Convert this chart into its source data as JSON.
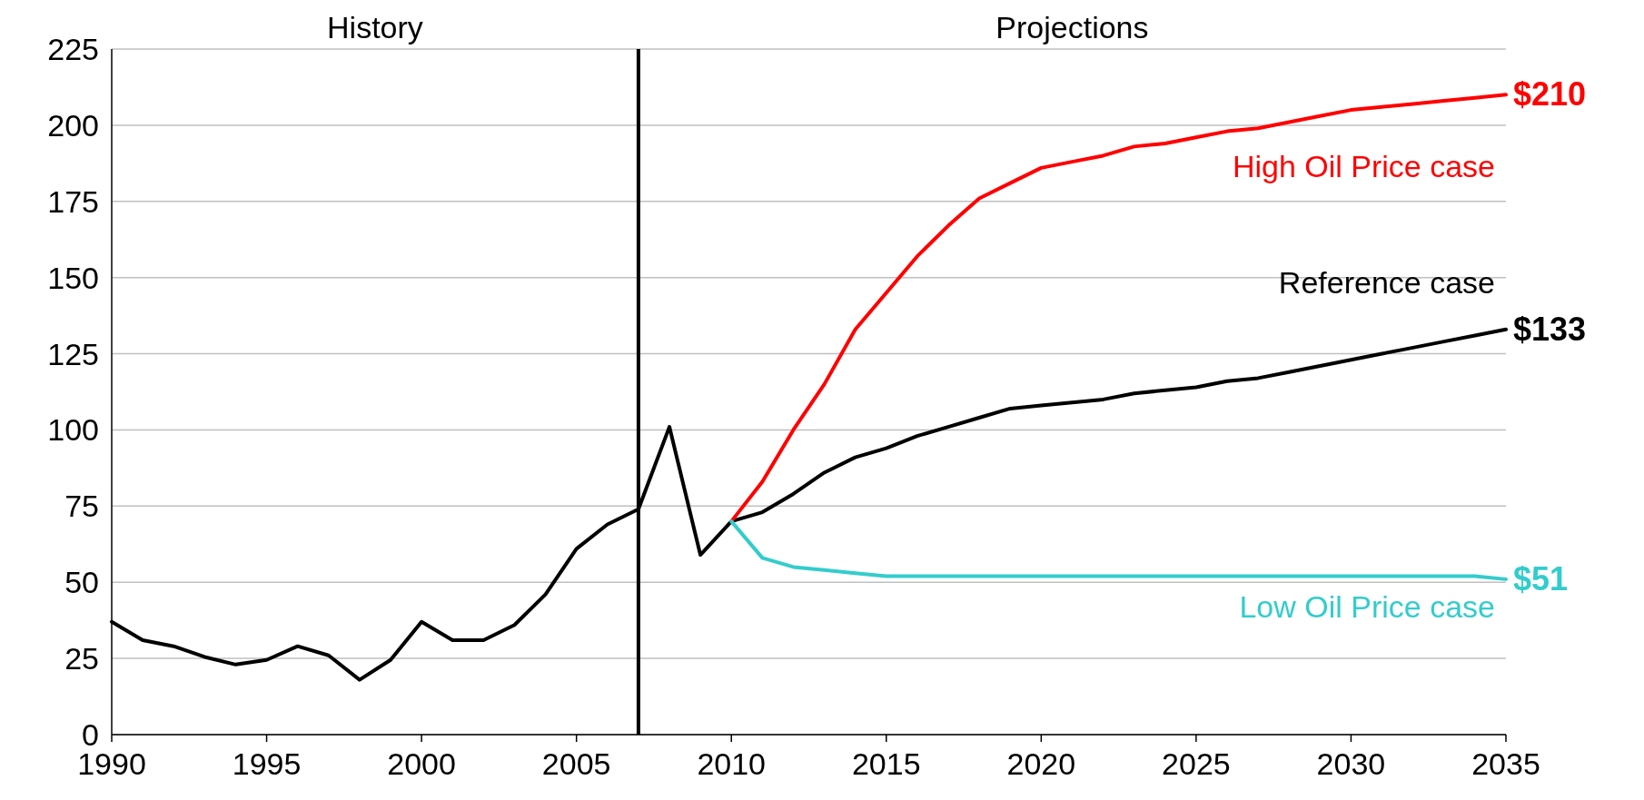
{
  "chart_data": {
    "type": "line",
    "x": [
      1990,
      1991,
      1992,
      1993,
      1994,
      1995,
      1996,
      1997,
      1998,
      1999,
      2000,
      2001,
      2002,
      2003,
      2004,
      2005,
      2006,
      2007,
      2008,
      2009,
      2010,
      2011,
      2012,
      2013,
      2014,
      2015,
      2016,
      2017,
      2018,
      2019,
      2020,
      2021,
      2022,
      2023,
      2024,
      2025,
      2026,
      2027,
      2028,
      2029,
      2030,
      2031,
      2032,
      2033,
      2034,
      2035
    ],
    "series": [
      {
        "name": "Reference case",
        "color": "#000000",
        "values": [
          37,
          31,
          29,
          25.5,
          23,
          24.5,
          29,
          26,
          18,
          24.5,
          37,
          31,
          31,
          36,
          46,
          61,
          69,
          74,
          101,
          59,
          70,
          73,
          79,
          86,
          91,
          94,
          98,
          101,
          104,
          107,
          108,
          109,
          110,
          112,
          113,
          114,
          116,
          117,
          119,
          121,
          123,
          125,
          127,
          129,
          131,
          133
        ]
      },
      {
        "name": "High Oil Price case",
        "color": "#ff0000",
        "values": [
          null,
          null,
          null,
          null,
          null,
          null,
          null,
          null,
          null,
          null,
          null,
          null,
          null,
          null,
          null,
          null,
          null,
          null,
          null,
          null,
          70,
          83,
          100,
          115,
          133,
          145,
          157,
          167,
          176,
          181,
          186,
          188,
          190,
          193,
          194,
          196,
          198,
          199,
          201,
          203,
          205,
          206,
          207,
          208,
          209,
          210
        ]
      },
      {
        "name": "Low Oil Price case",
        "color": "#33cccc",
        "values": [
          null,
          null,
          null,
          null,
          null,
          null,
          null,
          null,
          null,
          null,
          null,
          null,
          null,
          null,
          null,
          null,
          null,
          null,
          null,
          null,
          70,
          58,
          55,
          54,
          53,
          52,
          52,
          52,
          52,
          52,
          52,
          52,
          52,
          52,
          52,
          52,
          52,
          52,
          52,
          52,
          52,
          52,
          52,
          52,
          52,
          51
        ]
      }
    ],
    "xlim": [
      1990,
      2035
    ],
    "xticks": [
      1990,
      1995,
      2000,
      2005,
      2010,
      2015,
      2020,
      2025,
      2030,
      2035
    ],
    "ylim": [
      0,
      225
    ],
    "yticks": [
      0,
      25,
      50,
      75,
      100,
      125,
      150,
      175,
      200,
      225
    ],
    "grid": "y",
    "marker": "none",
    "line_style": "solid",
    "ref_lines": [
      {
        "axis": "x",
        "value": 2007,
        "color": "#000000"
      }
    ],
    "annotations": [
      "History",
      "Projections",
      "$210",
      "$133",
      "$51"
    ]
  }
}
